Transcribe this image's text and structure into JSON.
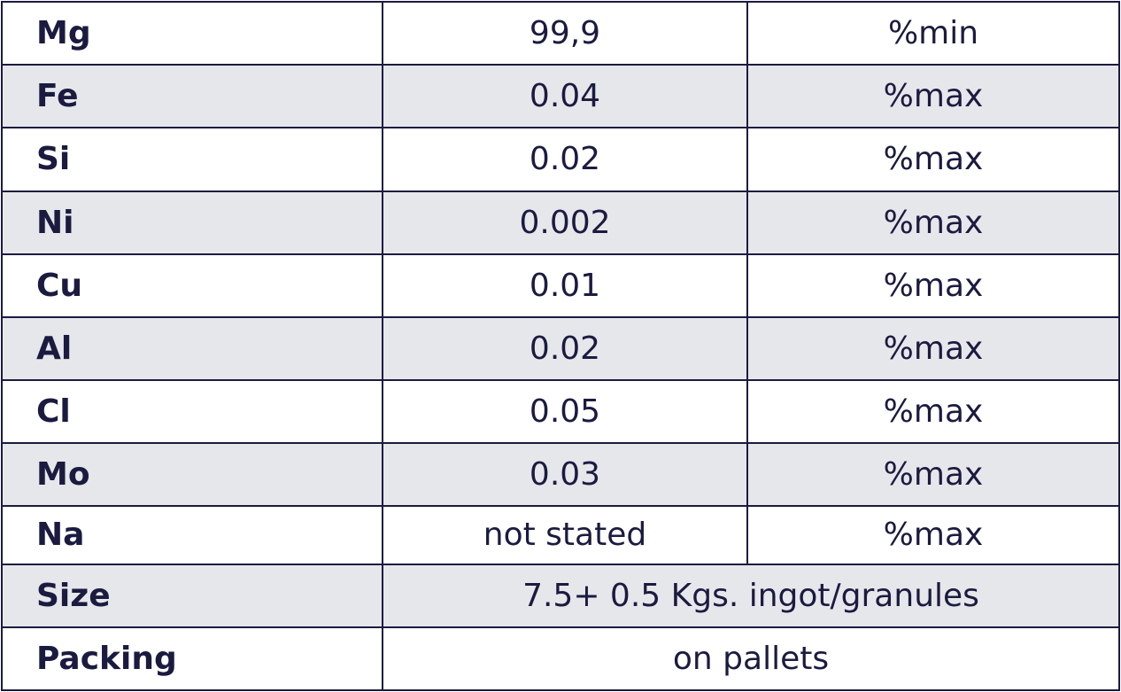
{
  "table": {
    "rows": [
      [
        "Mg",
        "99,9",
        "%min"
      ],
      [
        "Fe",
        "0.04",
        "%max"
      ],
      [
        "Si",
        "0.02",
        "%max"
      ],
      [
        "Ni",
        "0.002",
        "%max"
      ],
      [
        "Cu",
        "0.01",
        "%max"
      ],
      [
        "Al",
        "0.02",
        "%max"
      ],
      [
        "Cl",
        "0.05",
        "%max"
      ],
      [
        "Mo",
        "0.03",
        "%max"
      ],
      [
        "Na",
        "not stated",
        "%max"
      ],
      [
        "Size",
        "7.5+ 0.5 Kgs. ingot/granules"
      ],
      [
        "Packing",
        "on pallets"
      ]
    ]
  }
}
